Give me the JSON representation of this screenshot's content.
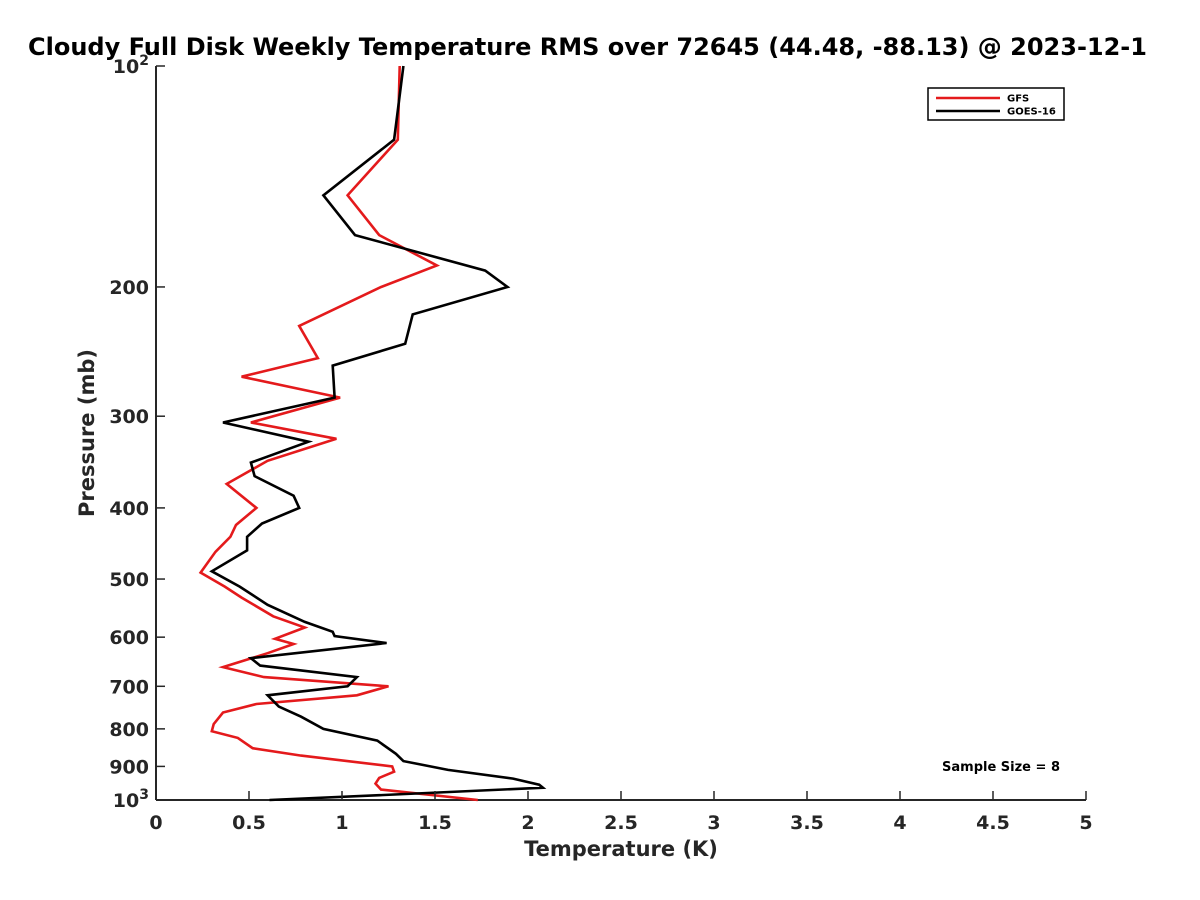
{
  "chart_data": {
    "type": "line",
    "title": "Cloudy Full Disk Weekly Temperature RMS over 72645 (44.48, -88.13) @ 2023-12-1",
    "xlabel": "Temperature (K)",
    "ylabel": "Pressure (mb)",
    "xlim": [
      0,
      5
    ],
    "ylim": [
      100,
      1000
    ],
    "y_scale": "log",
    "y_reversed": true,
    "grid": false,
    "legend_position": "top-right",
    "x_ticks": [
      0,
      0.5,
      1,
      1.5,
      2,
      2.5,
      3,
      3.5,
      4,
      4.5,
      5
    ],
    "x_tick_labels": [
      "0",
      "0.5",
      "1",
      "1.5",
      "2",
      "2.5",
      "3",
      "3.5",
      "4",
      "4.5",
      "5"
    ],
    "y_ticks": [
      100,
      200,
      300,
      400,
      500,
      600,
      700,
      800,
      900,
      1000
    ],
    "y_tick_labels": [
      {
        "base": "10",
        "exp": "2"
      },
      {
        "base": "200",
        "exp": ""
      },
      {
        "base": "300",
        "exp": ""
      },
      {
        "base": "400",
        "exp": ""
      },
      {
        "base": "500",
        "exp": ""
      },
      {
        "base": "600",
        "exp": ""
      },
      {
        "base": "700",
        "exp": ""
      },
      {
        "base": "800",
        "exp": ""
      },
      {
        "base": "900",
        "exp": ""
      },
      {
        "base": "10",
        "exp": "3"
      }
    ],
    "series": [
      {
        "name": "GFS",
        "color": "#e41a1c",
        "points": [
          [
            1.31,
            100
          ],
          [
            1.3,
            126
          ],
          [
            1.03,
            150
          ],
          [
            1.2,
            170
          ],
          [
            1.51,
            187
          ],
          [
            1.21,
            200
          ],
          [
            0.77,
            226
          ],
          [
            0.87,
            250
          ],
          [
            0.46,
            265
          ],
          [
            0.99,
            283
          ],
          [
            0.51,
            306
          ],
          [
            0.97,
            322
          ],
          [
            0.6,
            345
          ],
          [
            0.38,
            371
          ],
          [
            0.54,
            400
          ],
          [
            0.43,
            422
          ],
          [
            0.4,
            438
          ],
          [
            0.32,
            459
          ],
          [
            0.24,
            490
          ],
          [
            0.37,
            512
          ],
          [
            0.46,
            530
          ],
          [
            0.63,
            562
          ],
          [
            0.8,
            582
          ],
          [
            0.64,
            603
          ],
          [
            0.74,
            613
          ],
          [
            0.6,
            631
          ],
          [
            0.36,
            659
          ],
          [
            0.58,
            680
          ],
          [
            1.25,
            700
          ],
          [
            1.08,
            720
          ],
          [
            0.54,
            740
          ],
          [
            0.36,
            760
          ],
          [
            0.31,
            788
          ],
          [
            0.3,
            806
          ],
          [
            0.44,
            823
          ],
          [
            0.52,
            850
          ],
          [
            0.78,
            870
          ],
          [
            1.27,
            900
          ],
          [
            1.28,
            915
          ],
          [
            1.2,
            933
          ],
          [
            1.18,
            950
          ],
          [
            1.21,
            968
          ],
          [
            1.73,
            1000
          ]
        ]
      },
      {
        "name": "GOES-16",
        "color": "#000000",
        "points": [
          [
            1.33,
            100
          ],
          [
            1.28,
            126
          ],
          [
            0.9,
            150
          ],
          [
            1.07,
            170
          ],
          [
            1.77,
            190
          ],
          [
            1.89,
            200
          ],
          [
            1.38,
            218
          ],
          [
            1.34,
            239
          ],
          [
            0.95,
            256
          ],
          [
            0.96,
            283
          ],
          [
            0.36,
            306
          ],
          [
            0.82,
            325
          ],
          [
            0.51,
            347
          ],
          [
            0.53,
            362
          ],
          [
            0.74,
            385
          ],
          [
            0.77,
            400
          ],
          [
            0.57,
            420
          ],
          [
            0.49,
            438
          ],
          [
            0.49,
            457
          ],
          [
            0.3,
            488
          ],
          [
            0.45,
            512
          ],
          [
            0.6,
            542
          ],
          [
            0.8,
            572
          ],
          [
            0.95,
            590
          ],
          [
            0.96,
            598
          ],
          [
            1.24,
            611
          ],
          [
            0.51,
            641
          ],
          [
            0.56,
            656
          ],
          [
            1.08,
            680
          ],
          [
            1.03,
            700
          ],
          [
            0.6,
            720
          ],
          [
            0.66,
            746
          ],
          [
            0.78,
            770
          ],
          [
            0.9,
            800
          ],
          [
            1.19,
            830
          ],
          [
            1.29,
            865
          ],
          [
            1.33,
            885
          ],
          [
            1.57,
            910
          ],
          [
            1.92,
            935
          ],
          [
            2.06,
            953
          ],
          [
            2.08,
            962
          ],
          [
            1.2,
            985
          ],
          [
            0.61,
            1000
          ]
        ]
      }
    ],
    "annotation": "Sample Size = 8"
  }
}
